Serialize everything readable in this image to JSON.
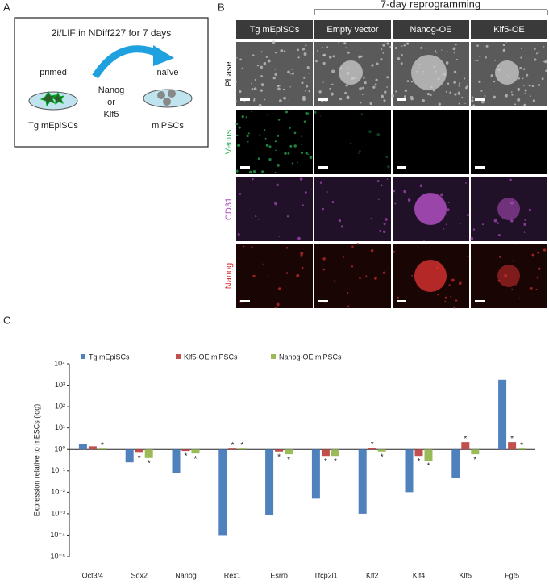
{
  "panels": {
    "a": {
      "letter": "A",
      "title": "2i/LIF in NDiff227 for 7 days",
      "primed": "primed",
      "naive": "naïve",
      "factors": [
        "Nanog",
        "or",
        "Klf5"
      ],
      "left_label": "Tg mEpiSCs",
      "right_label": "miPSCs"
    },
    "b": {
      "letter": "B",
      "bracket_label": "7-day reprogramming",
      "columns": [
        "Tg mEpiSCs",
        "Empty vector",
        "Nanog-OE",
        "Klf5-OE"
      ],
      "rows": [
        "Phase",
        "Venus",
        "CD31",
        "Nanog"
      ]
    },
    "c": {
      "letter": "C"
    }
  },
  "chart_data": {
    "type": "bar",
    "y_label": "Expression relative to mESCs (log)",
    "log_scale": true,
    "categories": [
      "Oct3/4",
      "Sox2",
      "Nanog",
      "Rex1",
      "Esrrb",
      "Tfcp2l1",
      "Klf2",
      "Klf4",
      "Klf5",
      "Fgf5"
    ],
    "series": [
      {
        "name": "Tg mEpiSCs",
        "color": "#4f81bd",
        "values": [
          1.8,
          0.25,
          0.08,
          0.0001,
          0.0009,
          0.005,
          0.001,
          0.01,
          0.045,
          1800
        ],
        "significance": [
          null,
          null,
          null,
          null,
          null,
          null,
          null,
          null,
          null,
          null
        ]
      },
      {
        "name": "Klf5-OE miPSCs",
        "color": "#c0504d",
        "values": [
          1.4,
          0.7,
          0.85,
          1.1,
          0.8,
          0.5,
          1.2,
          0.5,
          2.2,
          2.2
        ],
        "significance": [
          null,
          "*",
          "*",
          "*",
          "*",
          "*",
          "*",
          "*",
          "*",
          "*"
        ]
      },
      {
        "name": "Nanog-OE miPSCs",
        "color": "#9bbb59",
        "values": [
          1.1,
          0.4,
          0.65,
          1.1,
          0.6,
          0.5,
          0.8,
          0.3,
          0.6,
          1.1
        ],
        "significance": [
          "*",
          "*",
          "*",
          "*",
          "*",
          "*",
          "*",
          "*",
          "*",
          "*"
        ]
      }
    ],
    "ylim": [
      1e-05,
      10000
    ],
    "yticks": [
      {
        "value": 1e-05,
        "label": "10⁻⁵"
      },
      {
        "value": 0.0001,
        "label": "10⁻⁴"
      },
      {
        "value": 0.001,
        "label": "10⁻³"
      },
      {
        "value": 0.01,
        "label": "10⁻²"
      },
      {
        "value": 0.1,
        "label": "10⁻¹"
      },
      {
        "value": 1,
        "label": "10⁰"
      },
      {
        "value": 10,
        "label": "10¹"
      },
      {
        "value": 100,
        "label": "10²"
      },
      {
        "value": 1000,
        "label": "10³"
      },
      {
        "value": 10000,
        "label": "10⁴"
      }
    ],
    "legend": "top"
  }
}
